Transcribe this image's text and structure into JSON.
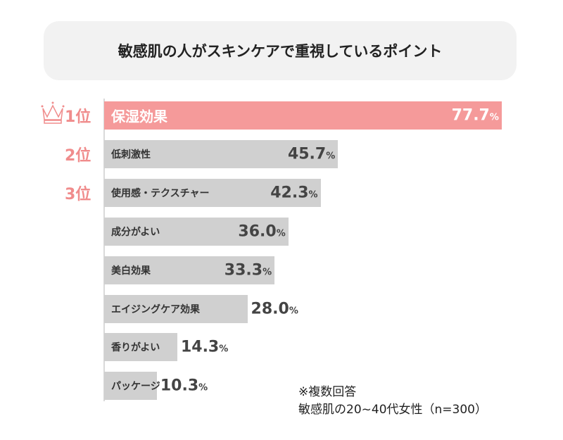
{
  "chart_data": {
    "type": "bar",
    "orientation": "horizontal",
    "title": "敏感肌の人がスキンケアで重視しているポイント",
    "categories": [
      "保湿効果",
      "低刺激性",
      "使用感・テクスチャー",
      "成分がよい",
      "美白効果",
      "エイジングケア効果",
      "香りがよい",
      "パッケージ"
    ],
    "values": [
      77.7,
      45.7,
      42.3,
      36.0,
      33.3,
      28.0,
      14.3,
      10.3
    ],
    "value_labels": [
      "77.7",
      "45.7",
      "42.3",
      "36.0",
      "33.3",
      "28.0",
      "14.3",
      "10.3"
    ],
    "unit": "%",
    "ranks": [
      "1位",
      "2位",
      "3位"
    ],
    "colors": {
      "top": "#f59a9a",
      "other": "#d0d0d0",
      "rank": "#f08c8c"
    },
    "grid": false,
    "notes": [
      "※複数回答",
      "敏感肌の20~40代女性（n=300）"
    ]
  }
}
